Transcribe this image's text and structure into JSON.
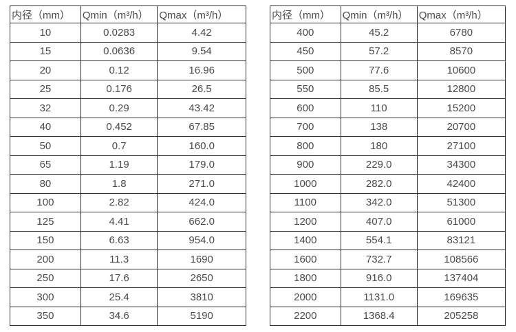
{
  "page": {
    "background": "#ffffff",
    "border_color": "#2e2e2e",
    "text_color": "#4a4a4a"
  },
  "tables": [
    {
      "name": "flow-spec-table-small-diameters",
      "headers": [
        "内径（mm）",
        "Qmin（m³/h）",
        "Qmax（m³/h）"
      ],
      "rows": [
        [
          "10",
          "0.0283",
          "4.42"
        ],
        [
          "15",
          "0.0636",
          "9.54"
        ],
        [
          "20",
          "0.12",
          "16.96"
        ],
        [
          "25",
          "0.176",
          "26.5"
        ],
        [
          "32",
          "0.29",
          "43.42"
        ],
        [
          "40",
          "0.452",
          "67.85"
        ],
        [
          "50",
          "0.7",
          "160.0"
        ],
        [
          "65",
          "1.19",
          "179.0"
        ],
        [
          "80",
          "1.8",
          "271.0"
        ],
        [
          "100",
          "2.82",
          "424.0"
        ],
        [
          "125",
          "4.41",
          "662.0"
        ],
        [
          "150",
          "6.63",
          "954.0"
        ],
        [
          "200",
          "11.3",
          "1690"
        ],
        [
          "250",
          "17.6",
          "2650"
        ],
        [
          "300",
          "25.4",
          "3810"
        ],
        [
          "350",
          "34.6",
          "5190"
        ]
      ]
    },
    {
      "name": "flow-spec-table-large-diameters",
      "headers": [
        "内径（mm）",
        "Qmin（m³/h）",
        "Qmax（m³/h）"
      ],
      "rows": [
        [
          "400",
          "45.2",
          "6780"
        ],
        [
          "450",
          "57.2",
          "8570"
        ],
        [
          "500",
          "77.6",
          "10600"
        ],
        [
          "550",
          "85.5",
          "12800"
        ],
        [
          "600",
          "110",
          "15200"
        ],
        [
          "700",
          "138",
          "20700"
        ],
        [
          "800",
          "180",
          "27100"
        ],
        [
          "900",
          "229.0",
          "34300"
        ],
        [
          "1000",
          "282.0",
          "42400"
        ],
        [
          "1100",
          "342.0",
          "51300"
        ],
        [
          "1200",
          "407.0",
          "61000"
        ],
        [
          "1400",
          "554.1",
          "83121"
        ],
        [
          "1600",
          "732.7",
          "108566"
        ],
        [
          "1800",
          "916.0",
          "137404"
        ],
        [
          "2000",
          "1131.0",
          "169635"
        ],
        [
          "2200",
          "1368.4",
          "205258"
        ]
      ]
    }
  ]
}
